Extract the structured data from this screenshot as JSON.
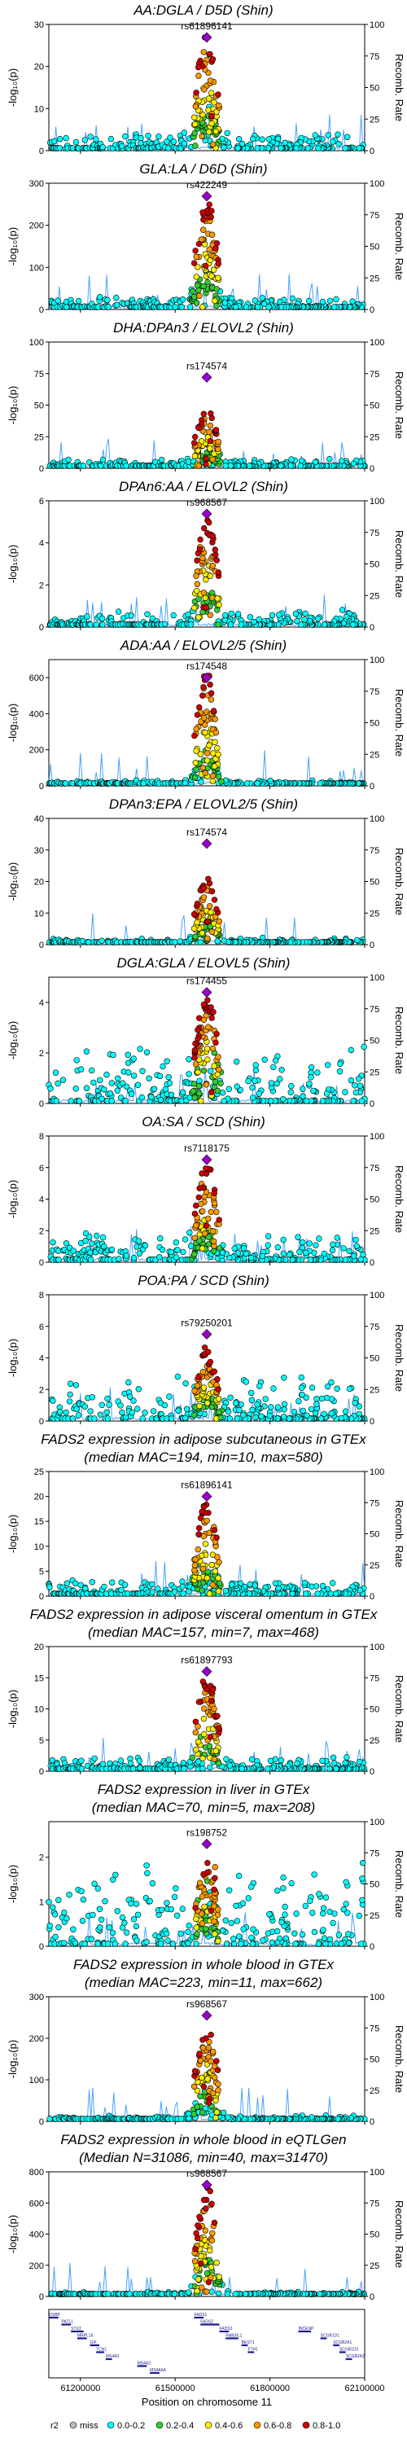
{
  "figure": {
    "x_axis_label": "Position on chromosome 11",
    "x_ticks": [
      61200000,
      61500000,
      61800000,
      62100000
    ],
    "xlim": [
      61100000,
      62100000
    ],
    "y_left_label": "-log₁₀(p)",
    "y_right_label": "Recomb. Rate",
    "recomb_ticks": [
      0,
      25,
      50,
      75,
      100
    ],
    "lead_snp_position": 61600000
  },
  "legend": {
    "title": "r2",
    "items": [
      {
        "label": "miss",
        "color": "#bbbbbb"
      },
      {
        "label": "0.0-0.2",
        "color": "#00ffff"
      },
      {
        "label": "0.2-0.4",
        "color": "#33cc33"
      },
      {
        "label": "0.4-0.6",
        "color": "#ffee00"
      },
      {
        "label": "0.6-0.8",
        "color": "#ff9900"
      },
      {
        "label": "0.8-1.0",
        "color": "#cc0000"
      }
    ],
    "lead_color": "#9900cc"
  },
  "chart_data": [
    {
      "type": "scatter",
      "title": "AA:DGLA / D5D (Shin)",
      "title2": "",
      "lead_snp": "rs61896141",
      "ylim": [
        0,
        30
      ],
      "yticks": [
        0,
        10,
        20,
        30
      ],
      "peak": 28,
      "lead_value": 28,
      "bg": 3,
      "noise": 0.25
    },
    {
      "type": "scatter",
      "title": "GLA:LA / D6D (Shin)",
      "title2": "",
      "lead_snp": "rs422249",
      "ylim": [
        0,
        300
      ],
      "yticks": [
        0,
        100,
        200,
        300
      ],
      "peak": 260,
      "lead_value": 270,
      "bg": 20,
      "noise": 0.3
    },
    {
      "type": "scatter",
      "title": "DHA:DPAn3 / ELOVL2 (Shin)",
      "title2": "",
      "lead_snp": "rs174574",
      "ylim": [
        0,
        100
      ],
      "yticks": [
        0,
        25,
        50,
        75,
        100
      ],
      "peak": 48,
      "lead_value": 72,
      "bg": 5,
      "noise": 0.3
    },
    {
      "type": "scatter",
      "title": "DPAn6:AA / ELOVL2 (Shin)",
      "title2": "",
      "lead_snp": "rs968567",
      "ylim": [
        0,
        6
      ],
      "yticks": [
        0,
        2,
        4,
        6
      ],
      "peak": 5.2,
      "lead_value": 5.6,
      "bg": 0.5,
      "noise": 0.35
    },
    {
      "type": "scatter",
      "title": "ADA:AA / ELOVL2/5 (Shin)",
      "title2": "",
      "lead_snp": "rs174548",
      "ylim": [
        0,
        700
      ],
      "yticks": [
        0,
        200,
        400,
        600
      ],
      "peak": 640,
      "lead_value": 600,
      "bg": 20,
      "noise": 0.3
    },
    {
      "type": "scatter",
      "title": "DPAn3:EPA / ELOVL2/5 (Shin)",
      "title2": "",
      "lead_snp": "rs174574",
      "ylim": [
        0,
        40
      ],
      "yticks": [
        0,
        10,
        20,
        30,
        40
      ],
      "peak": 21,
      "lead_value": 32,
      "bg": 1.5,
      "noise": 0.25
    },
    {
      "type": "scatter",
      "title": "DGLA:GLA / ELOVL5 (Shin)",
      "title2": "",
      "lead_snp": "rs174455",
      "ylim": [
        0,
        5
      ],
      "yticks": [
        0,
        2,
        4
      ],
      "peak": 4.3,
      "lead_value": 4.4,
      "bg": 1.2,
      "noise": 0.5
    },
    {
      "type": "scatter",
      "title": "OA:SA / SCD (Shin)",
      "title2": "",
      "lead_snp": "rs7118175",
      "ylim": [
        0,
        8
      ],
      "yticks": [
        0,
        2,
        4,
        6,
        8
      ],
      "peak": 6.2,
      "lead_value": 6.5,
      "bg": 1.0,
      "noise": 0.5
    },
    {
      "type": "scatter",
      "title": "POA:PA / SCD (Shin)",
      "title2": "",
      "lead_snp": "rs79250201",
      "ylim": [
        0,
        8
      ],
      "yticks": [
        0,
        2,
        4,
        6,
        8
      ],
      "peak": 4.5,
      "lead_value": 5.5,
      "bg": 1.5,
      "noise": 0.6
    },
    {
      "type": "scatter",
      "title": "FADS2 expression in adipose subcutaneous in GTEx",
      "title2": "(median MAC=194, min=10, max=580)",
      "lead_snp": "rs61896141",
      "ylim": [
        0,
        25
      ],
      "yticks": [
        0,
        5,
        10,
        15,
        20,
        25
      ],
      "peak": 19,
      "lead_value": 20,
      "bg": 2,
      "noise": 0.3
    },
    {
      "type": "scatter",
      "title": "FADS2 expression in adipose visceral omentum in GTEx",
      "title2": "(median MAC=157, min=7, max=468)",
      "lead_snp": "rs61897793",
      "ylim": [
        0,
        20
      ],
      "yticks": [
        0,
        5,
        10,
        15,
        20
      ],
      "peak": 16,
      "lead_value": 16,
      "bg": 1.5,
      "noise": 0.3
    },
    {
      "type": "scatter",
      "title": "FADS2 expression in liver in GTEx",
      "title2": "(median MAC=70, min=5, max=208)",
      "lead_snp": "rs198752",
      "ylim": [
        0,
        2.8
      ],
      "yticks": [
        0,
        1,
        2
      ],
      "peak": 1.9,
      "lead_value": 2.3,
      "bg": 0.9,
      "noise": 0.6
    },
    {
      "type": "scatter",
      "title": "FADS2 expression in whole blood in GTEx",
      "title2": "(median MAC=223, min=11, max=662)",
      "lead_snp": "rs968567",
      "ylim": [
        0,
        300
      ],
      "yticks": [
        0,
        100,
        200,
        300
      ],
      "peak": 240,
      "lead_value": 255,
      "bg": 10,
      "noise": 0.3
    },
    {
      "type": "scatter",
      "title": "FADS2 expression in whole blood in eQTLGen",
      "title2": "(Median N=31086, min=40, max=31470)",
      "lead_snp": "rs968567",
      "ylim": [
        0,
        800
      ],
      "yticks": [
        0,
        200,
        400,
        600,
        800
      ],
      "peak": 720,
      "lead_value": 740,
      "bg": 20,
      "noise": 0.3
    }
  ],
  "genes": [
    {
      "name": "OSBP",
      "start": 61100000,
      "end": 61130000,
      "row": 0
    },
    {
      "name": "PATL1",
      "start": 61140000,
      "end": 61170000,
      "row": 1
    },
    {
      "name": "STX3",
      "start": 61170000,
      "end": 61210000,
      "row": 2
    },
    {
      "name": "MRPL16",
      "start": 61190000,
      "end": 61220000,
      "row": 3
    },
    {
      "name": "GIF",
      "start": 61230000,
      "end": 61260000,
      "row": 4
    },
    {
      "name": "TCN1",
      "start": 61250000,
      "end": 61275000,
      "row": 5
    },
    {
      "name": "MS4A3",
      "start": 61280000,
      "end": 61300000,
      "row": 6
    },
    {
      "name": "MS4A2",
      "start": 61380000,
      "end": 61410000,
      "row": 7
    },
    {
      "name": "MS4A6A",
      "start": 61420000,
      "end": 61450000,
      "row": 8
    },
    {
      "name": "FADS1",
      "start": 61560000,
      "end": 61590000,
      "row": 0
    },
    {
      "name": "FADS2",
      "start": 61580000,
      "end": 61640000,
      "row": 1
    },
    {
      "name": "FADS3",
      "start": 61640000,
      "end": 61670000,
      "row": 2
    },
    {
      "name": "RAB3IL1",
      "start": 61660000,
      "end": 61700000,
      "row": 3
    },
    {
      "name": "BEST1",
      "start": 61710000,
      "end": 61730000,
      "row": 4
    },
    {
      "name": "FTH1",
      "start": 61730000,
      "end": 61750000,
      "row": 5
    },
    {
      "name": "INCENP",
      "start": 61890000,
      "end": 61930000,
      "row": 2
    },
    {
      "name": "SCGB1D1",
      "start": 61960000,
      "end": 61980000,
      "row": 3
    },
    {
      "name": "SCGB2A1",
      "start": 62000000,
      "end": 62020000,
      "row": 4
    },
    {
      "name": "SCGB1D2",
      "start": 62020000,
      "end": 62040000,
      "row": 5
    },
    {
      "name": "SCGB2A2",
      "start": 62040000,
      "end": 62060000,
      "row": 6
    }
  ]
}
